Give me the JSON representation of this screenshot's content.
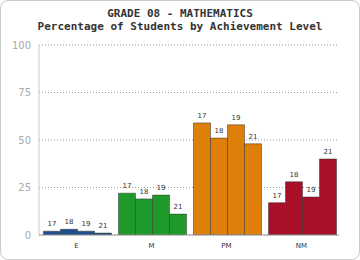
{
  "chart_data": {
    "type": "bar",
    "title": "GRADE 08 - MATHEMATICS",
    "subtitle": "Percentage of Students by Achievement Level",
    "categories": [
      "E",
      "M",
      "PM",
      "NM"
    ],
    "colors": [
      "#1f4e8c",
      "#1e9a2a",
      "#de7f0a",
      "#a8102a"
    ],
    "series": [
      {
        "name": "17",
        "values": [
          2,
          22,
          59,
          17
        ]
      },
      {
        "name": "18",
        "values": [
          3,
          19,
          51,
          28
        ]
      },
      {
        "name": "19",
        "values": [
          2,
          21,
          58,
          20
        ]
      },
      {
        "name": "21",
        "values": [
          1,
          11,
          48,
          40
        ]
      }
    ],
    "ylim": [
      0,
      100
    ],
    "yticks": [
      0,
      25,
      50,
      75,
      100
    ],
    "grid": true
  }
}
